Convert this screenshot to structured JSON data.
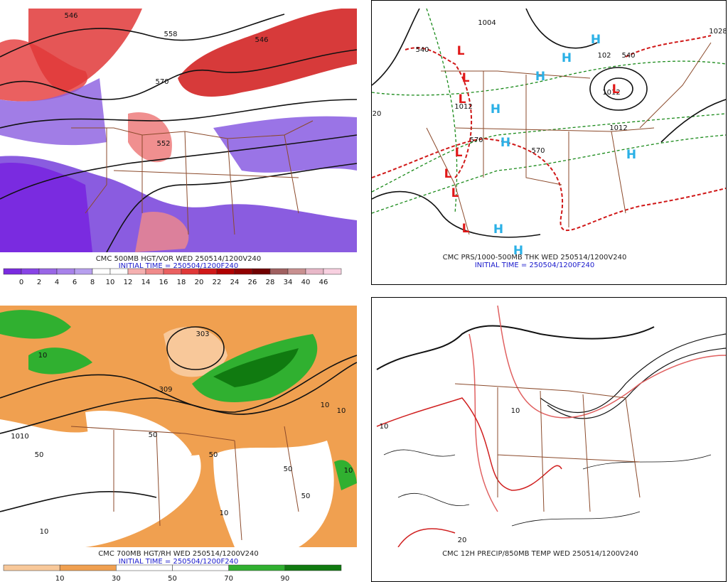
{
  "panels": [
    {
      "title": "CMC 500MB HGT/VOR WED 250514/1200V240",
      "initial_time": "INITIAL TIME = 250504/1200F240",
      "colorbar": {
        "labels": [
          0,
          2,
          4,
          6,
          8,
          10,
          12,
          14,
          16,
          18,
          20,
          22,
          24,
          26,
          28,
          34,
          40,
          46
        ],
        "colors": [
          "#7a2be0",
          "#8844e6",
          "#9966e6",
          "#a882ea",
          "#b7a0ee",
          "#ffffff",
          "#ffffff",
          "#f5b0b0",
          "#f08a8a",
          "#ea6060",
          "#e03838",
          "#d01818",
          "#b00000",
          "#900000",
          "#700000",
          "#a06060",
          "#c89090",
          "#e8b8c8",
          "#f8d0e0"
        ]
      },
      "contour_labels": [
        "546",
        "558",
        "570",
        "552",
        "546"
      ],
      "centers": []
    },
    {
      "title": "CMC PRS/1000-500MB THK WED 250514/1200V240",
      "initial_time": "INITIAL TIME = 250504/1200F240",
      "contour_labels": [
        "1004",
        "540",
        "570",
        "570",
        "1028",
        "1012",
        "1012",
        "20",
        "1012",
        "540",
        "102"
      ],
      "centers": [
        "L",
        "L",
        "L",
        "L",
        "L",
        "L",
        "L",
        "H",
        "H",
        "H",
        "H",
        "H",
        "H",
        "H",
        "H",
        "L"
      ]
    },
    {
      "title": "CMC 700MB HGT/RH WED 250514/1200V240",
      "initial_time": "INITIAL TIME = 250504/1200F240",
      "colorbar": {
        "labels": [
          10,
          30,
          50,
          70,
          90
        ],
        "colors": [
          "#f8c89a",
          "#f0a050",
          "#ffffff",
          "#ffffff",
          "#30b030",
          "#107a10"
        ]
      },
      "contour_labels": [
        "303",
        "309",
        "10",
        "10",
        "50",
        "50",
        "10",
        "1010",
        "50",
        "50",
        "10",
        "10",
        "50",
        "10"
      ],
      "centers": []
    },
    {
      "title": "CMC 12H PRECIP/850MB TEMP WED 250514/1200V240",
      "contour_labels": [
        "10",
        "10",
        "20"
      ],
      "centers": []
    }
  ]
}
